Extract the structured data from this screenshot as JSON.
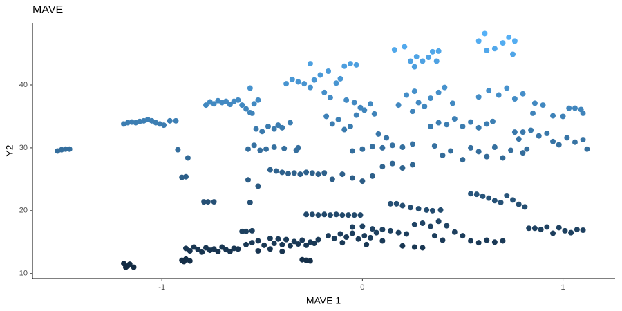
{
  "chart_data": {
    "type": "scatter",
    "title": "MAVE",
    "x_label": "MAVE 1",
    "y_label": "Y2",
    "xlim": [
      -1.645,
      1.26
    ],
    "ylim": [
      9.2,
      49.9
    ],
    "xticks": [
      -1,
      0,
      1
    ],
    "yticks": [
      10,
      20,
      30,
      40
    ],
    "grid": false,
    "color_low": "#132B43",
    "color_high": "#56B1F7",
    "x": [
      -1.52,
      -1.5,
      -1.48,
      -1.46,
      -1.19,
      -1.17,
      -1.15,
      -1.13,
      -1.11,
      -1.09,
      -1.07,
      -1.05,
      -1.03,
      -1.01,
      -0.99,
      -0.96,
      -0.93,
      -1.19,
      -1.17,
      -1.16,
      -1.14,
      -1.18,
      -0.92,
      -0.87,
      -0.9,
      -0.88,
      -0.9,
      -0.88,
      -0.86,
      -0.89,
      -0.79,
      -0.77,
      -0.74,
      -0.88,
      -0.86,
      -0.84,
      -0.82,
      -0.8,
      -0.78,
      -0.76,
      -0.74,
      -0.72,
      -0.7,
      -0.68,
      -0.66,
      -0.64,
      -0.62,
      -0.78,
      -0.76,
      -0.74,
      -0.72,
      -0.7,
      -0.68,
      -0.66,
      -0.64,
      -0.62,
      -0.6,
      -0.58,
      -0.56,
      -0.54,
      -0.52,
      -0.56,
      -0.6,
      -0.58,
      -0.55,
      -0.56,
      -0.57,
      -0.52,
      -0.58,
      -0.55,
      -0.52,
      -0.49,
      -0.46,
      -0.44,
      -0.42,
      -0.4,
      -0.38,
      -0.36,
      -0.34,
      -0.32,
      -0.3,
      -0.28,
      -0.26,
      -0.24,
      -0.22,
      -0.52,
      -0.46,
      -0.4,
      -0.57,
      -0.54,
      -0.51,
      -0.48,
      -0.44,
      -0.39,
      -0.33,
      -0.32,
      -0.55,
      -0.53,
      -0.5,
      -0.47,
      -0.44,
      -0.42,
      -0.4,
      -0.36,
      -0.46,
      -0.43,
      -0.4,
      -0.37,
      -0.34,
      -0.31,
      -0.28,
      -0.25,
      -0.22,
      -0.19,
      -0.38,
      -0.35,
      -0.32,
      -0.29,
      -0.26,
      -0.24,
      -0.26,
      -0.3,
      -0.28,
      -0.26,
      -0.28,
      -0.25,
      -0.22,
      -0.19,
      -0.16,
      -0.13,
      -0.1,
      -0.07,
      -0.04,
      -0.01,
      -0.17,
      -0.14,
      -0.11,
      -0.08,
      -0.05,
      -0.02,
      0.01,
      0.04,
      0.07,
      0.1,
      -0.05,
      0,
      0.05,
      -0.1,
      0.02,
      -0.21,
      -0.19,
      -0.16,
      -0.13,
      -0.11,
      -0.09,
      -0.06,
      -0.03,
      -0.08,
      -0.04,
      -0.01,
      -0.17,
      -0.18,
      -0.15,
      -0.12,
      -0.09,
      -0.06,
      -0.03,
      0.01,
      0.04,
      0.06,
      -0.05,
      0,
      0.05,
      0.1,
      0.15,
      0.2,
      0.25,
      0.08,
      0.12,
      -0.15,
      -0.1,
      -0.05,
      0,
      0.05,
      0.1,
      0.15,
      0.2,
      0.25,
      0.14,
      0.17,
      0.2,
      0.24,
      0.28,
      0.32,
      0.35,
      0.39,
      0.1,
      0.14,
      0.18,
      0.22,
      0.26,
      0.3,
      0.34,
      0.38,
      0.42,
      0.46,
      0.5,
      0.54,
      0.58,
      0.62,
      0.66,
      0.7,
      0.2,
      0.26,
      0.3,
      0.36,
      0.4,
      0.16,
      0.21,
      0.24,
      0.27,
      0.3,
      0.33,
      0.35,
      0.38,
      0.37,
      0.26,
      0.18,
      0.22,
      0.26,
      0.28,
      0.31,
      0.34,
      0.38,
      0.41,
      0.45,
      0.25,
      0.34,
      0.38,
      0.42,
      0.46,
      0.5,
      0.54,
      0.58,
      0.62,
      0.65,
      0.36,
      0.4,
      0.44,
      0.5,
      0.54,
      0.58,
      0.62,
      0.66,
      0.7,
      0.74,
      0.78,
      0.8,
      0.54,
      0.57,
      0.6,
      0.63,
      0.66,
      0.69,
      0.72,
      0.75,
      0.78,
      0.81,
      0.58,
      0.61,
      0.62,
      0.66,
      0.7,
      0.73,
      0.75,
      0.76,
      0.58,
      0.63,
      0.68,
      0.72,
      0.76,
      0.8,
      0.86,
      0.85,
      0.84,
      0.88,
      0.92,
      0.95,
      0.98,
      1.02,
      1.06,
      1.1,
      1.12,
      0.9,
      0.95,
      1,
      1.03,
      1.06,
      1.09,
      1.1,
      0.82,
      0.8,
      0.76,
      0.83,
      0.86,
      0.89,
      0.92,
      0.95,
      0.98,
      1.01,
      1.04,
      1.07,
      1.1
    ],
    "values": [
      29.5,
      29.7,
      29.8,
      29.8,
      33.8,
      34.0,
      34.1,
      34.0,
      34.2,
      34.3,
      34.5,
      34.3,
      34.0,
      33.8,
      33.6,
      34.3,
      34.3,
      11.6,
      11.2,
      11.5,
      11.0,
      11.0,
      29.7,
      28.4,
      25.3,
      25.4,
      12.1,
      12.3,
      12.0,
      11.9,
      21.4,
      21.4,
      21.4,
      14.0,
      13.6,
      14.2,
      13.8,
      13.4,
      14.1,
      13.7,
      13.9,
      13.5,
      14.2,
      13.8,
      13.5,
      14.0,
      13.9,
      36.8,
      37.3,
      37.0,
      37.5,
      37.2,
      37.4,
      36.9,
      37.4,
      37.6,
      36.8,
      36.2,
      35.6,
      37.0,
      37.6,
      39.5,
      16.7,
      16.7,
      16.8,
      21.3,
      24.9,
      23.9,
      14.6,
      14.9,
      15.2,
      14.5,
      15.6,
      14.8,
      15.5,
      14.6,
      15.4,
      14.4,
      15.1,
      14.7,
      15.3,
      14.5,
      15.0,
      14.8,
      15.4,
      13.6,
      13.9,
      13.5,
      29.8,
      30.4,
      29.6,
      29.8,
      30.1,
      29.9,
      29.6,
      30.0,
      35.5,
      33.0,
      32.6,
      33.4,
      33.0,
      33.6,
      33.2,
      34.0,
      26.5,
      26.3,
      26.1,
      25.9,
      26.0,
      25.8,
      26.1,
      26.0,
      25.8,
      26.0,
      40.2,
      40.9,
      40.5,
      40.2,
      39.6,
      40.8,
      43.4,
      12.2,
      12.1,
      12.0,
      19.4,
      19.4,
      19.3,
      19.4,
      19.3,
      19.4,
      19.3,
      19.3,
      19.3,
      19.3,
      16.0,
      15.6,
      16.3,
      15.8,
      16.4,
      15.5,
      16.0,
      15.7,
      16.5,
      15.2,
      17.4,
      17.5,
      17.1,
      14.9,
      14.6,
      41.6,
      38.8,
      38.0,
      40.3,
      41.0,
      43.0,
      43.4,
      43.2,
      37.6,
      37.2,
      36.4,
      42.2,
      35.0,
      33.8,
      34.5,
      32.9,
      33.4,
      35.2,
      36.0,
      37.0,
      35.4,
      29.5,
      29.8,
      30.2,
      30.0,
      30.4,
      30.1,
      30.6,
      32.2,
      31.6,
      25.0,
      25.8,
      25.2,
      24.7,
      25.5,
      27.0,
      27.5,
      26.8,
      27.3,
      21.1,
      21.1,
      20.8,
      20.5,
      20.3,
      20.1,
      20.0,
      20.1,
      17.0,
      16.8,
      16.5,
      16.3,
      17.8,
      18.0,
      17.5,
      18.3,
      17.6,
      16.6,
      16.0,
      15.2,
      14.9,
      15.3,
      15.0,
      15.2,
      14.4,
      14.2,
      14.1,
      16.0,
      15.3,
      45.6,
      46.1,
      43.8,
      44.5,
      43.8,
      44.4,
      45.3,
      45.4,
      43.8,
      42.9,
      36.8,
      38.4,
      39.0,
      37.2,
      36.6,
      37.9,
      38.8,
      39.6,
      37.1,
      35.8,
      33.4,
      34.0,
      33.7,
      34.6,
      33.4,
      34.1,
      33.2,
      33.8,
      34.2,
      30.3,
      28.8,
      29.5,
      28.1,
      30.0,
      29.4,
      28.6,
      30.1,
      28.4,
      29.6,
      31.4,
      29.2,
      22.7,
      22.6,
      22.3,
      22.0,
      21.6,
      21.3,
      22.4,
      21.7,
      21.0,
      20.6,
      47.0,
      48.2,
      45.5,
      45.8,
      46.7,
      47.6,
      44.9,
      47.0,
      38.1,
      39.1,
      38.4,
      39.5,
      37.8,
      38.6,
      37.1,
      35.5,
      32.8,
      31.9,
      32.3,
      31.0,
      30.5,
      31.6,
      30.9,
      31.3,
      29.8,
      36.8,
      35.1,
      35.0,
      36.3,
      36.3,
      36.1,
      35.5,
      29.8,
      32.5,
      32.5,
      17.2,
      17.2,
      17.0,
      17.4,
      16.4,
      17.3,
      16.8,
      16.5,
      17.0,
      16.9
    ]
  }
}
